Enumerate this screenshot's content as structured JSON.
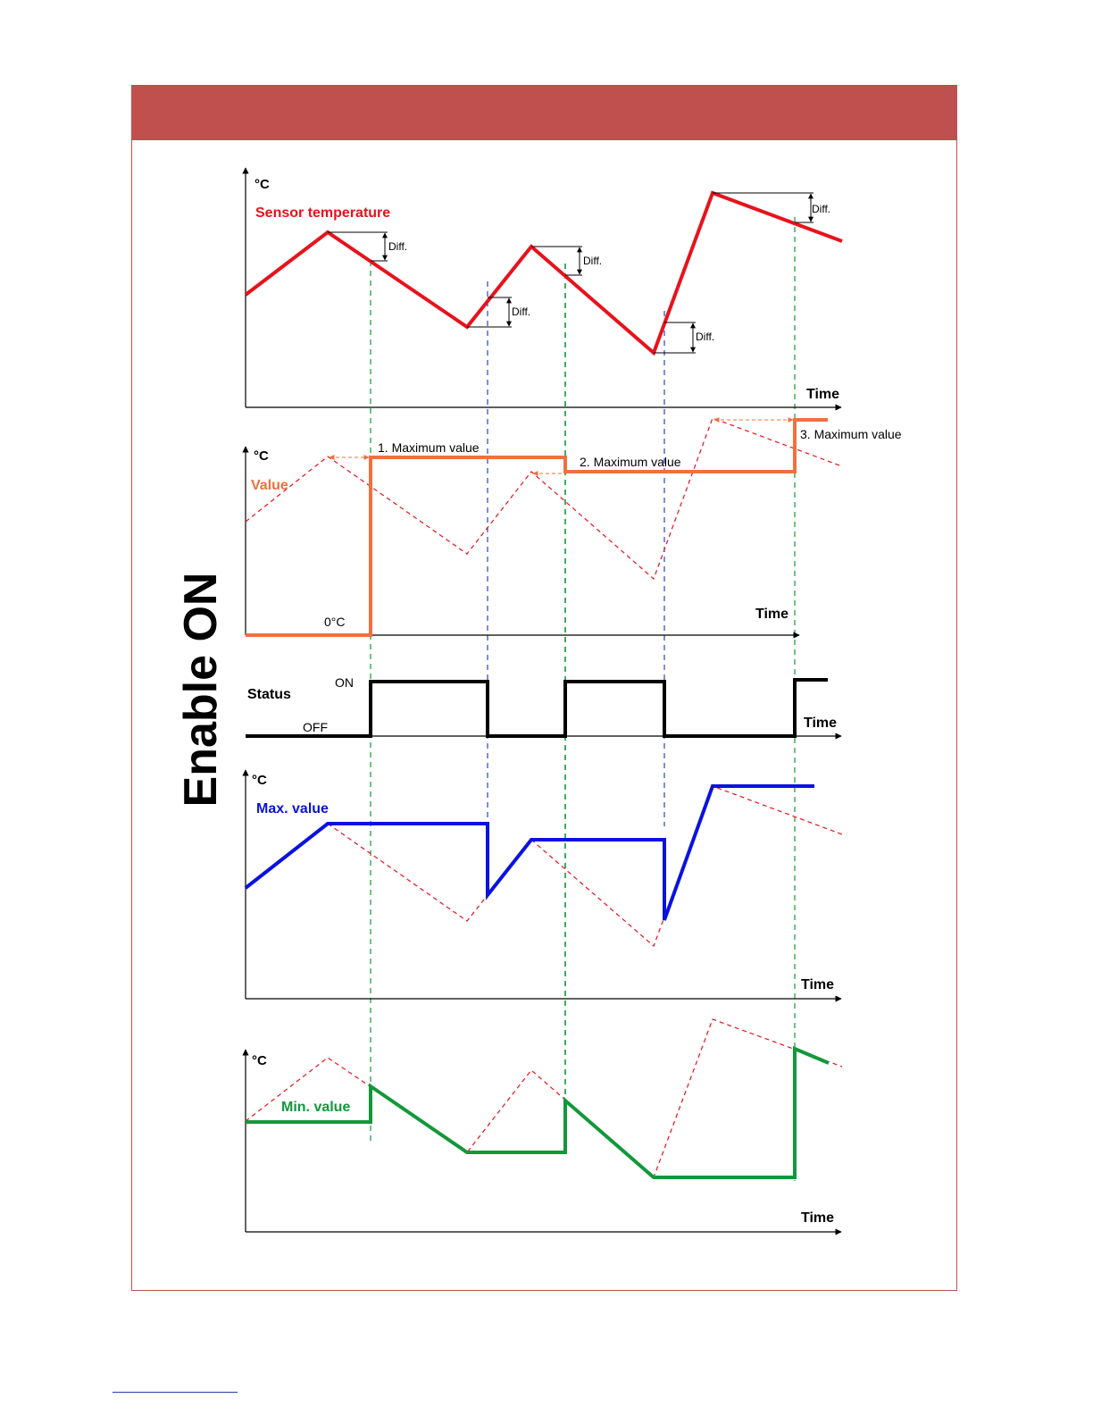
{
  "side_label": "Enable ON",
  "colors": {
    "header": "#c0504d",
    "sensor": "#e8121c",
    "value": "#f0703e",
    "status": "#000000",
    "max": "#0a12e0",
    "min": "#11983a",
    "guide_green": "#11983a",
    "guide_blue": "#3040c0"
  },
  "panels": {
    "sensor": {
      "unit": "°C",
      "label": "Sensor temperature",
      "time_label": "Time",
      "diff_label": "Diff."
    },
    "value": {
      "unit": "°C",
      "label": "Value",
      "time_label": "Time",
      "zero_label": "0°C",
      "annotations": [
        "1. Maximum value",
        "2. Maximum value",
        "3. Maximum value"
      ]
    },
    "status": {
      "label": "Status",
      "on_label": "ON",
      "off_label": "OFF",
      "time_label": "Time"
    },
    "max": {
      "unit": "°C",
      "label": "Max. value",
      "time_label": "Time"
    },
    "min": {
      "unit": "°C",
      "label": "Min. value",
      "time_label": "Time"
    }
  }
}
